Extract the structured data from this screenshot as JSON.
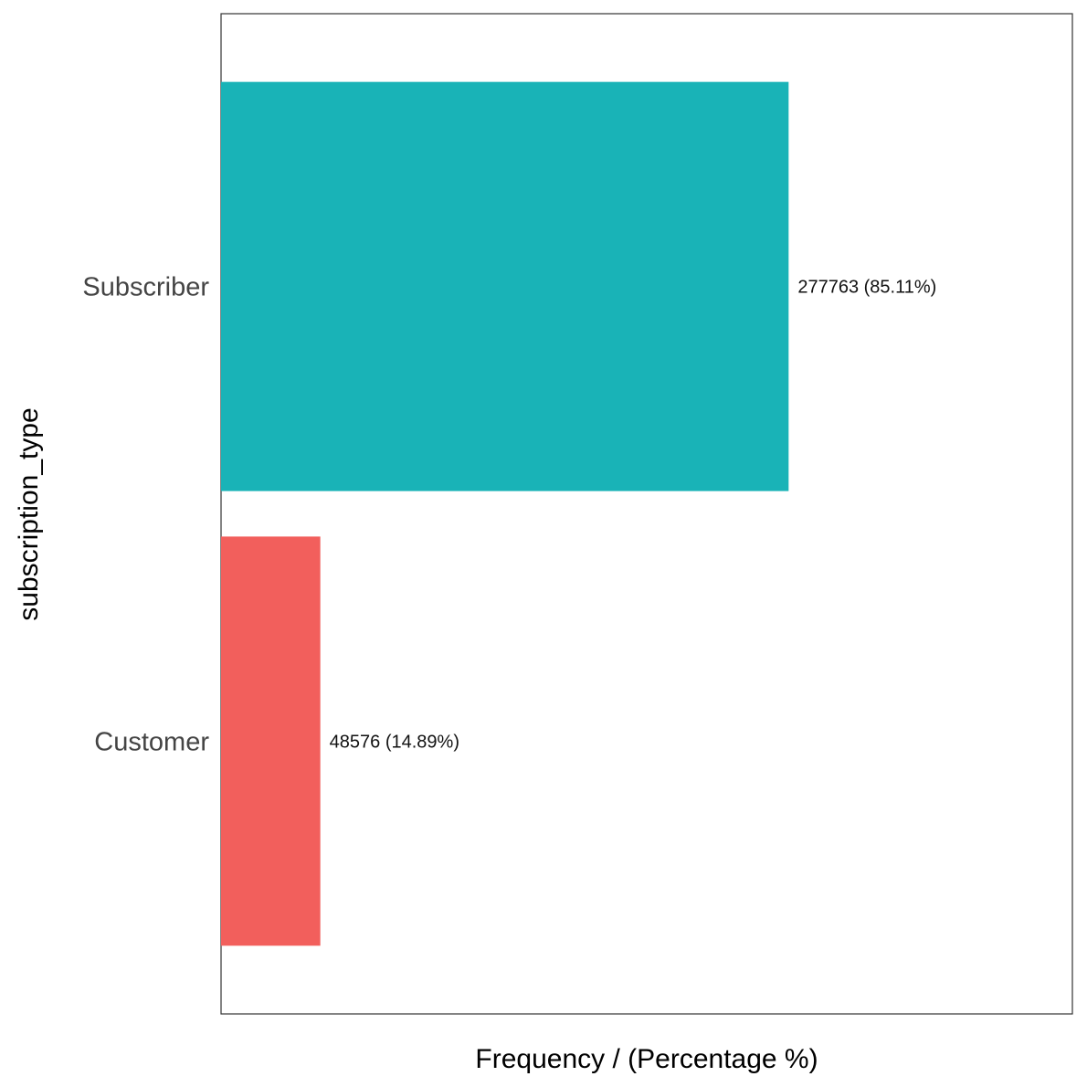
{
  "chart_data": {
    "type": "bar",
    "orientation": "horizontal",
    "categories": [
      "Customer",
      "Subscriber"
    ],
    "values": [
      48576,
      277763
    ],
    "percentages": [
      14.89,
      85.11
    ],
    "data_labels": [
      "48576 (14.89%)",
      "277763 (85.11%)"
    ],
    "colors": [
      "#F25F5C",
      "#19B3B7"
    ],
    "xlabel": "Frequency / (Percentage %)",
    "ylabel": "subscription_type",
    "xlim": [
      0,
      416645
    ],
    "x_ticks_visible": false,
    "grid": false,
    "legend": "none",
    "panel_border": true
  }
}
